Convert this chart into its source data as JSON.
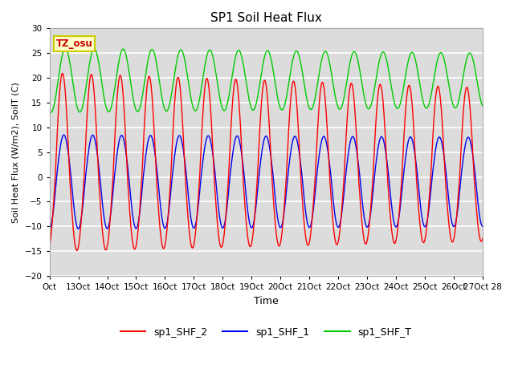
{
  "title": "SP1 Soil Heat Flux",
  "xlabel": "Time",
  "ylabel": "Soil Heat Flux (W/m2), SoilT (C)",
  "ylim": [
    -20,
    30
  ],
  "bg_color": "#dcdcdc",
  "fig_bg": "#ffffff",
  "grid_color": "#ffffff",
  "annotation_text": "TZ_osu",
  "annotation_bg": "#ffffcc",
  "annotation_border": "#cccc00",
  "annotation_color": "#cc0000",
  "legend_entries": [
    "sp1_SHF_2",
    "sp1_SHF_1",
    "sp1_SHF_T"
  ],
  "line_colors": [
    "#ff0000",
    "#0000ee",
    "#00cc00"
  ],
  "xtick_labels": [
    "Oct",
    "13Oct",
    "14Oct",
    "15Oct",
    "16Oct",
    "17Oct",
    "18Oct",
    "19Oct",
    "20Oct",
    "21Oct",
    "22Oct",
    "23Oct",
    "24Oct",
    "25Oct",
    "26Oct",
    "27Oct 28"
  ],
  "ytick_vals": [
    -20,
    -15,
    -10,
    -5,
    0,
    5,
    10,
    15,
    20,
    25,
    30
  ],
  "n_points": 3000,
  "period": 1.0
}
